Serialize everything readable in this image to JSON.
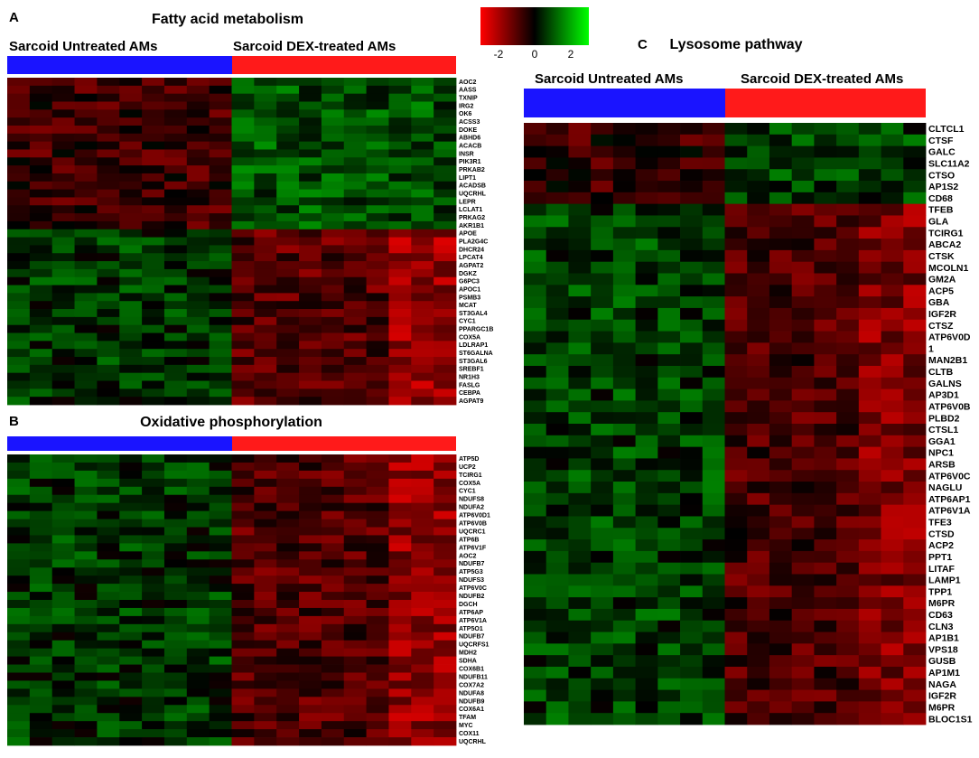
{
  "colors": {
    "untreated_bar": "#1a14ff",
    "treated_bar": "#ff1a1a",
    "low": "#ff0000",
    "mid": "#000000",
    "high": "#00ff00"
  },
  "color_scale": {
    "ticks": [
      "-2",
      "0",
      "2"
    ],
    "range": [
      -3,
      3
    ]
  },
  "panels": {
    "A": {
      "letter": "A",
      "title": "Fatty acid metabolism",
      "group_untreated": "Sarcoid Untreated AMs",
      "group_treated": "Sarcoid DEX-treated AMs",
      "genes": [
        "AOC2",
        "AASS",
        "TXNIP",
        "IRG2",
        "OK6",
        "ACSS3",
        "DOKE",
        "ABHD6",
        "ACACB",
        "INSR",
        "PIK3R1",
        "PRKAB2",
        "LIPT1",
        "ACADSB",
        "UQCRHL",
        "LEPR",
        "LCLAT1",
        "PRKAG2",
        "AKR1B1",
        "APOE",
        "PLA2G4C",
        "DHCR24",
        "LPCAT4",
        "AGPAT2",
        "DGKZ",
        "G6PC3",
        "APOC1",
        "PSMB3",
        "MCAT",
        "ST3GAL4",
        "CYC1",
        "PPARGC1B",
        "COX5A",
        "LDLRAP1",
        "ST6GALNA",
        "ST3GAL6",
        "SREBF1",
        "NR1H3",
        "FASLG",
        "CEBPA",
        "AGPAT9"
      ]
    },
    "B": {
      "letter": "B",
      "title": "Oxidative phosphorylation",
      "genes": [
        "ATP5D",
        "UCP2",
        "TCIRG1",
        "COX5A",
        "CYC1",
        "NDUFS8",
        "NDUFA2",
        "ATP6V0D1",
        "ATP6V0B",
        "UQCRC1",
        "ATP6B",
        "ATP6V1F",
        "AOC2",
        "NDUFB7",
        "ATP5G3",
        "NDUFS3",
        "ATP6V0C",
        "NDUFB2",
        "DGCH",
        "ATP6AP",
        "ATP6V1A",
        "ATP5O1",
        "NDUFB7",
        "UQCRFS1",
        "MDH2",
        "SDHA",
        "COX6B1",
        "NDUFB11",
        "COX7A2",
        "NDUFA8",
        "NDUFB9",
        "COX6A1",
        "TFAM",
        "MYC",
        "COX11",
        "UQCRHL"
      ]
    },
    "C": {
      "letter": "C",
      "title": "Lysosome pathway",
      "group_untreated": "Sarcoid Untreated AMs",
      "group_treated": "Sarcoid DEX-treated AMs",
      "genes": [
        "CLTCL1",
        "CTSF",
        "GALC",
        "SLC11A2",
        "CTSO",
        "AP1S2",
        "CD68",
        "TFEB",
        "GLA",
        "TCIRG1",
        "ABCA2",
        "CTSK",
        "MCOLN1",
        "GM2A",
        "ACP5",
        "GBA",
        "IGF2R",
        "CTSZ",
        "ATP6V0D",
        "1",
        "MAN2B1",
        "CLTB",
        "GALNS",
        "AP3D1",
        "ATP6V0B",
        "PLBD2",
        "CTSL1",
        "GGA1",
        "NPC1",
        "ARSB",
        "ATP6V0C",
        "NAGLU",
        "ATP6AP1",
        "ATP6V1A",
        "TFE3",
        "CTSD",
        "ACP2",
        "PPT1",
        "LITAF",
        "LAMP1",
        "TPP1",
        "M6PR",
        "CD63",
        "CLN3",
        "AP1B1",
        "VPS18",
        "GUSB",
        "AP1M1",
        "NAGA",
        "IGF2R",
        "M6PR",
        "BLOC1S1"
      ]
    }
  },
  "chart_data": [
    {
      "type": "heatmap",
      "title": "Fatty acid metabolism",
      "columns": {
        "untreated": 10,
        "treated": 10
      },
      "groups": [
        "Sarcoid Untreated AMs",
        "Sarcoid DEX-treated AMs"
      ],
      "rows": [
        "AOC2",
        "AASS",
        "TXNIP",
        "IRG2",
        "OK6",
        "ACSS3",
        "DOKE",
        "ABHD6",
        "ACACB",
        "INSR",
        "PIK3R1",
        "PRKAB2",
        "LIPT1",
        "ACADSB",
        "UQCRHL",
        "LEPR",
        "LCLAT1",
        "PRKAG2",
        "AKR1B1",
        "APOE",
        "PLA2G4C",
        "DHCR24",
        "LPCAT4",
        "AGPAT2",
        "DGKZ",
        "G6PC3",
        "APOC1",
        "PSMB3",
        "MCAT",
        "ST3GAL4",
        "CYC1",
        "PPARGC1B",
        "COX5A",
        "LDLRAP1",
        "ST6GALNA",
        "ST3GAL6",
        "SREBF1",
        "NR1H3",
        "FASLG",
        "CEBPA",
        "AGPAT9"
      ],
      "pattern": "top rows: untreated red / treated green; bottom rows: untreated green / treated red",
      "value_range": [
        -3,
        3
      ]
    },
    {
      "type": "heatmap",
      "title": "Oxidative phosphorylation",
      "columns": {
        "untreated": 10,
        "treated": 10
      },
      "rows": [
        "ATP5D",
        "UCP2",
        "TCIRG1",
        "COX5A",
        "CYC1",
        "NDUFS8",
        "NDUFA2",
        "ATP6V0D1",
        "ATP6V0B",
        "UQCRC1",
        "ATP6B",
        "ATP6V1F",
        "AOC2",
        "NDUFB7",
        "ATP5G3",
        "NDUFS3",
        "ATP6V0C",
        "NDUFB2",
        "DGCH",
        "ATP6AP",
        "ATP6V1A",
        "ATP5O1",
        "NDUFB7",
        "UQCRFS1",
        "MDH2",
        "SDHA",
        "COX6B1",
        "NDUFB11",
        "COX7A2",
        "NDUFA8",
        "NDUFB9",
        "COX6A1",
        "TFAM",
        "MYC",
        "COX11",
        "UQCRHL"
      ],
      "pattern": "untreated green / treated red",
      "value_range": [
        -3,
        3
      ]
    },
    {
      "type": "heatmap",
      "title": "Lysosome pathway",
      "columns": {
        "untreated": 9,
        "treated": 9
      },
      "groups": [
        "Sarcoid Untreated AMs",
        "Sarcoid DEX-treated AMs"
      ],
      "rows": [
        "CLTCL1",
        "CTSF",
        "GALC",
        "SLC11A2",
        "CTSO",
        "AP1S2",
        "CD68",
        "TFEB",
        "GLA",
        "TCIRG1",
        "ABCA2",
        "CTSK",
        "MCOLN1",
        "GM2A",
        "ACP5",
        "GBA",
        "IGF2R",
        "CTSZ",
        "ATP6V0D",
        "1",
        "MAN2B1",
        "CLTB",
        "GALNS",
        "AP3D1",
        "ATP6V0B",
        "PLBD2",
        "CTSL1",
        "GGA1",
        "NPC1",
        "ARSB",
        "ATP6V0C",
        "NAGLU",
        "ATP6AP1",
        "ATP6V1A",
        "TFE3",
        "CTSD",
        "ACP2",
        "PPT1",
        "LITAF",
        "LAMP1",
        "TPP1",
        "M6PR",
        "CD63",
        "CLN3",
        "AP1B1",
        "VPS18",
        "GUSB",
        "AP1M1",
        "NAGA",
        "IGF2R",
        "M6PR",
        "BLOC1S1"
      ],
      "pattern": "top rows: untreated red / treated green; rest: untreated green / treated red",
      "value_range": [
        -3,
        3
      ]
    }
  ]
}
